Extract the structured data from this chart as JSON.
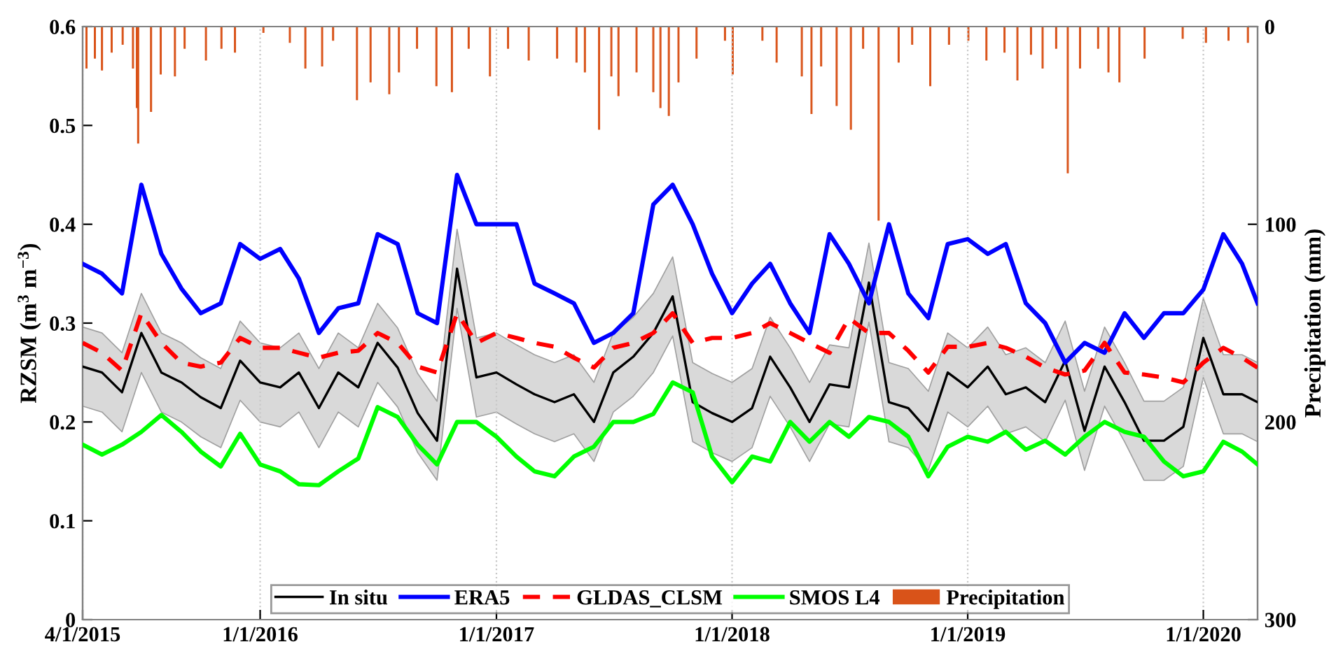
{
  "chart_data": {
    "type": "line",
    "ylabel": "RZSM (m$^{3}$ m$^{−3}$)",
    "y2label": "Precipitation (mm)",
    "x": [
      "2015-04-01",
      "2015-05-01",
      "2015-06-01",
      "2015-07-01",
      "2015-08-01",
      "2015-09-01",
      "2015-10-01",
      "2015-11-01",
      "2015-12-01",
      "2016-01-01",
      "2016-02-01",
      "2016-03-01",
      "2016-04-01",
      "2016-05-01",
      "2016-06-01",
      "2016-07-01",
      "2016-08-01",
      "2016-09-01",
      "2016-10-01",
      "2016-11-01",
      "2016-12-01",
      "2017-01-01",
      "2017-02-01",
      "2017-03-01",
      "2017-04-01",
      "2017-05-01",
      "2017-06-01",
      "2017-07-01",
      "2017-08-01",
      "2017-09-01",
      "2017-10-01",
      "2017-11-01",
      "2017-12-01",
      "2018-01-01",
      "2018-02-01",
      "2018-03-01",
      "2018-04-01",
      "2018-05-01",
      "2018-06-01",
      "2018-07-01",
      "2018-08-01",
      "2018-09-01",
      "2018-10-01",
      "2018-11-01",
      "2018-12-01",
      "2019-01-01",
      "2019-02-01",
      "2019-03-01",
      "2019-04-01",
      "2019-05-01",
      "2019-06-01",
      "2019-07-01",
      "2019-08-01",
      "2019-09-01",
      "2019-10-01",
      "2019-11-01",
      "2019-12-01",
      "2020-01-01",
      "2020-02-01",
      "2020-03-01",
      "2020-03-25"
    ],
    "series": [
      {
        "name": "In situ",
        "color": "#000000",
        "line_style": "solid",
        "values": [
          0.256,
          0.25,
          0.23,
          0.29,
          0.25,
          0.24,
          0.225,
          0.214,
          0.262,
          0.24,
          0.235,
          0.25,
          0.214,
          0.25,
          0.235,
          0.28,
          0.255,
          0.209,
          0.181,
          0.355,
          0.245,
          0.25,
          0.238,
          0.228,
          0.22,
          0.228,
          0.2,
          0.25,
          0.266,
          0.29,
          0.327,
          0.22,
          0.209,
          0.2,
          0.214,
          0.266,
          0.235,
          0.2,
          0.238,
          0.235,
          0.341,
          0.22,
          0.214,
          0.191,
          0.25,
          0.235,
          0.256,
          0.228,
          0.235,
          0.22,
          0.262,
          0.191,
          0.256,
          0.22,
          0.181,
          0.181,
          0.195,
          0.285,
          0.228,
          0.228,
          0.22
        ],
        "lower": [
          0.216,
          0.21,
          0.19,
          0.25,
          0.21,
          0.2,
          0.185,
          0.174,
          0.222,
          0.2,
          0.195,
          0.21,
          0.174,
          0.21,
          0.195,
          0.24,
          0.215,
          0.169,
          0.141,
          0.315,
          0.205,
          0.21,
          0.198,
          0.188,
          0.18,
          0.188,
          0.16,
          0.21,
          0.226,
          0.25,
          0.287,
          0.18,
          0.169,
          0.16,
          0.174,
          0.226,
          0.195,
          0.16,
          0.198,
          0.195,
          0.301,
          0.18,
          0.174,
          0.151,
          0.21,
          0.195,
          0.216,
          0.188,
          0.195,
          0.18,
          0.222,
          0.151,
          0.216,
          0.18,
          0.141,
          0.141,
          0.155,
          0.245,
          0.188,
          0.188,
          0.18
        ],
        "upper": [
          0.296,
          0.29,
          0.27,
          0.33,
          0.29,
          0.28,
          0.265,
          0.254,
          0.302,
          0.28,
          0.275,
          0.29,
          0.254,
          0.29,
          0.275,
          0.32,
          0.295,
          0.249,
          0.221,
          0.395,
          0.285,
          0.29,
          0.278,
          0.268,
          0.26,
          0.268,
          0.24,
          0.29,
          0.306,
          0.33,
          0.367,
          0.26,
          0.249,
          0.24,
          0.254,
          0.306,
          0.275,
          0.24,
          0.278,
          0.275,
          0.381,
          0.26,
          0.254,
          0.231,
          0.29,
          0.275,
          0.296,
          0.268,
          0.275,
          0.26,
          0.302,
          0.231,
          0.296,
          0.26,
          0.221,
          0.221,
          0.235,
          0.325,
          0.268,
          0.268,
          0.26
        ]
      },
      {
        "name": "ERA5",
        "color": "#0000ff",
        "line_style": "solid",
        "values": [
          0.36,
          0.35,
          0.33,
          0.44,
          0.37,
          0.335,
          0.31,
          0.32,
          0.38,
          0.365,
          0.375,
          0.345,
          0.29,
          0.315,
          0.32,
          0.39,
          0.38,
          0.31,
          0.3,
          0.45,
          0.4,
          0.4,
          0.4,
          0.34,
          0.33,
          0.32,
          0.28,
          0.29,
          0.31,
          0.42,
          0.44,
          0.4,
          0.35,
          0.31,
          0.34,
          0.36,
          0.32,
          0.29,
          0.39,
          0.36,
          0.32,
          0.4,
          0.33,
          0.305,
          0.38,
          0.385,
          0.37,
          0.38,
          0.32,
          0.3,
          0.26,
          0.28,
          0.27,
          0.31,
          0.285,
          0.31,
          0.31,
          0.334,
          0.39,
          0.36,
          0.32
        ]
      },
      {
        "name": "GLDAS_CLSM",
        "color": "#ff0000",
        "line_style": "dashed",
        "values": [
          0.28,
          0.27,
          0.252,
          0.31,
          0.28,
          0.26,
          0.256,
          0.26,
          0.285,
          0.275,
          0.275,
          0.27,
          0.265,
          0.27,
          0.272,
          0.29,
          0.28,
          0.256,
          0.25,
          0.31,
          0.28,
          0.29,
          0.285,
          0.28,
          0.276,
          0.265,
          0.255,
          0.275,
          0.28,
          0.29,
          0.31,
          0.28,
          0.285,
          0.285,
          0.29,
          0.3,
          0.29,
          0.28,
          0.27,
          0.305,
          0.29,
          0.29,
          0.272,
          0.25,
          0.276,
          0.276,
          0.28,
          0.275,
          0.266,
          0.255,
          0.248,
          0.252,
          0.28,
          0.25,
          0.248,
          0.245,
          0.24,
          0.26,
          0.275,
          0.265,
          0.255
        ]
      },
      {
        "name": "SMOS L4",
        "color": "#00ff00",
        "line_style": "solid",
        "values": [
          0.177,
          0.167,
          0.177,
          0.19,
          0.207,
          0.19,
          0.17,
          0.155,
          0.188,
          0.157,
          0.15,
          0.137,
          0.136,
          0.15,
          0.163,
          0.215,
          0.205,
          0.177,
          0.157,
          0.2,
          0.2,
          0.185,
          0.165,
          0.15,
          0.145,
          0.165,
          0.175,
          0.2,
          0.2,
          0.208,
          0.24,
          0.23,
          0.165,
          0.139,
          0.165,
          0.16,
          0.2,
          0.18,
          0.2,
          0.185,
          0.205,
          0.2,
          0.185,
          0.145,
          0.175,
          0.185,
          0.18,
          0.19,
          0.172,
          0.181,
          0.167,
          0.185,
          0.2,
          0.19,
          0.185,
          0.16,
          0.145,
          0.15,
          0.18,
          0.17,
          0.157
        ]
      },
      {
        "name": "Precipitation",
        "type": "bar",
        "axis": "y2",
        "color": "#d95319",
        "x": [
          "2015-04-07",
          "2015-04-20",
          "2015-05-01",
          "2015-05-16",
          "2015-06-02",
          "2015-06-18",
          "2015-06-24",
          "2015-06-26",
          "2015-07-16",
          "2015-07-31",
          "2015-08-22",
          "2015-09-06",
          "2015-10-09",
          "2015-11-02",
          "2015-11-23",
          "2016-01-06",
          "2016-02-16",
          "2016-03-11",
          "2016-04-06",
          "2016-04-23",
          "2016-05-30",
          "2016-06-20",
          "2016-07-19",
          "2016-08-03",
          "2016-08-31",
          "2016-09-30",
          "2016-10-24",
          "2016-11-19",
          "2016-12-22",
          "2017-01-19",
          "2017-02-20",
          "2017-04-05",
          "2017-05-05",
          "2017-05-18",
          "2017-06-09",
          "2017-06-28",
          "2017-07-09",
          "2017-08-06",
          "2017-09-01",
          "2017-09-12",
          "2017-09-25",
          "2017-10-10",
          "2017-11-07",
          "2017-12-21",
          "2018-01-02",
          "2018-02-17",
          "2018-03-11",
          "2018-04-19",
          "2018-05-04",
          "2018-05-19",
          "2018-06-12",
          "2018-07-04",
          "2018-07-23",
          "2018-08-16",
          "2018-09-16",
          "2018-10-07",
          "2018-11-04",
          "2018-12-03",
          "2019-01-02",
          "2019-01-30",
          "2019-02-27",
          "2019-03-19",
          "2019-04-09",
          "2019-04-27",
          "2019-05-18",
          "2019-06-05",
          "2019-06-24",
          "2019-07-22",
          "2019-08-07",
          "2019-08-24",
          "2019-10-02",
          "2019-11-30",
          "2020-01-05",
          "2020-02-09",
          "2020-03-10"
        ],
        "values": [
          21,
          16,
          22,
          13,
          9,
          21,
          41,
          59,
          43,
          24,
          25,
          11,
          17,
          11,
          13,
          3,
          8,
          21,
          20,
          7,
          37,
          28,
          34,
          23,
          11,
          30,
          33,
          11,
          25,
          11,
          17,
          16,
          18,
          23,
          52,
          25,
          35,
          23,
          33,
          41,
          45,
          28,
          16,
          7,
          24,
          7,
          18,
          25,
          44,
          20,
          40,
          52,
          11,
          98,
          18,
          9,
          30,
          9,
          7,
          17,
          13,
          27,
          14,
          21,
          11,
          74,
          21,
          11,
          23,
          28,
          16,
          6,
          8,
          7,
          8
        ]
      }
    ],
    "xlim": [
      "2015-04-01",
      "2020-03-25"
    ],
    "xticks": [
      {
        "value": "2015-04-01",
        "label": "4/1/2015"
      },
      {
        "value": "2016-01-01",
        "label": "1/1/2016"
      },
      {
        "value": "2017-01-01",
        "label": "1/1/2017"
      },
      {
        "value": "2018-01-01",
        "label": "1/1/2018"
      },
      {
        "value": "2019-01-01",
        "label": "1/1/2019"
      },
      {
        "value": "2020-01-01",
        "label": "1/1/2020"
      }
    ],
    "ylim": [
      0,
      0.6
    ],
    "yticks": [
      0,
      0.1,
      0.2,
      0.3,
      0.4,
      0.5,
      0.6
    ],
    "y2lim": [
      300,
      0
    ],
    "y2ticks": [
      0,
      100,
      200,
      300
    ],
    "grid": "x",
    "legend": "bottom"
  }
}
